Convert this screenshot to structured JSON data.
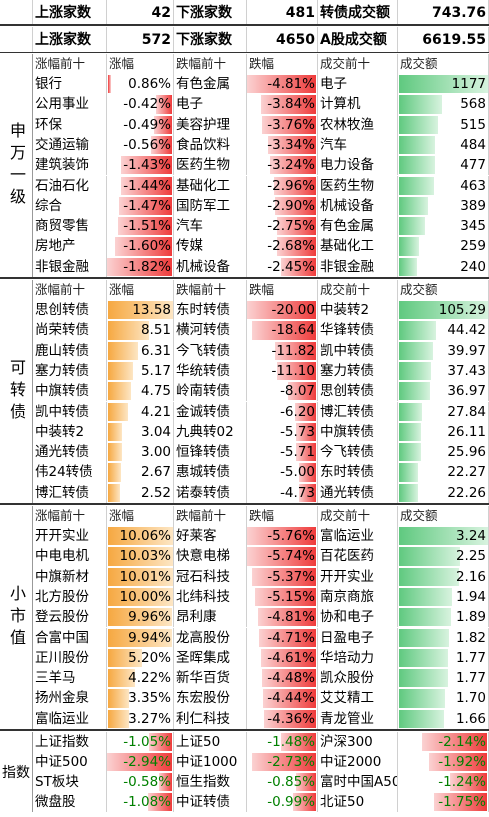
{
  "colors": {
    "up": "#ff0000",
    "down": "#008000",
    "neutral": "#000000"
  },
  "top": [
    {
      "k1": "上涨家数",
      "v1": "42",
      "k2": "下涨家数",
      "v2": "481",
      "k3": "转债成交额",
      "v3": "743.76"
    },
    {
      "k1": "上涨家数",
      "v1": "572",
      "k2": "下涨家数",
      "v2": "4650",
      "k3": "A股成交额",
      "v3": "6619.55"
    }
  ],
  "sections": [
    {
      "label": "申万一级",
      "headers": [
        "涨幅前十",
        "涨幅",
        "跌幅前十",
        "跌幅",
        "成交前十",
        "成交额"
      ],
      "rows": [
        [
          "银行",
          "0.86%",
          "有色金属",
          "-4.81%",
          "电子",
          "1177"
        ],
        [
          "公用事业",
          "-0.42%",
          "电子",
          "-3.84%",
          "计算机",
          "568"
        ],
        [
          "环保",
          "-0.49%",
          "美容护理",
          "-3.76%",
          "农林牧渔",
          "515"
        ],
        [
          "交通运输",
          "-0.56%",
          "食品饮料",
          "-3.34%",
          "汽车",
          "484"
        ],
        [
          "建筑装饰",
          "-1.43%",
          "医药生物",
          "-3.24%",
          "电力设备",
          "477"
        ],
        [
          "石油石化",
          "-1.44%",
          "基础化工",
          "-2.96%",
          "医药生物",
          "463"
        ],
        [
          "综合",
          "-1.47%",
          "国防军工",
          "-2.90%",
          "机械设备",
          "389"
        ],
        [
          "商贸零售",
          "-1.51%",
          "汽车",
          "-2.75%",
          "有色金属",
          "345"
        ],
        [
          "房地产",
          "-1.60%",
          "传媒",
          "-2.68%",
          "基础化工",
          "259"
        ],
        [
          "非银金融",
          "-1.82%",
          "机械设备",
          "-2.45%",
          "非银金融",
          "240"
        ]
      ],
      "bars": {
        "c1": [
          0.05,
          0.25,
          0.28,
          0.32,
          0.78,
          0.79,
          0.81,
          0.83,
          0.88,
          1.0
        ],
        "c3": [
          1.0,
          0.8,
          0.78,
          0.69,
          0.67,
          0.61,
          0.6,
          0.57,
          0.56,
          0.51
        ],
        "c5": [
          1.0,
          0.48,
          0.44,
          0.41,
          0.41,
          0.39,
          0.33,
          0.29,
          0.22,
          0.2
        ]
      }
    },
    {
      "label": "可转债",
      "headers": [
        "涨幅前十",
        "涨幅",
        "跌幅前十",
        "跌幅",
        "成交前十",
        "成交额"
      ],
      "rows": [
        [
          "思创转债",
          "13.58",
          "东时转债",
          "-20.00",
          "中装转2",
          "105.29"
        ],
        [
          "尚荣转债",
          "8.51",
          "横河转债",
          "-18.64",
          "华锋转债",
          "44.42"
        ],
        [
          "鹿山转债",
          "6.31",
          "今飞转债",
          "-11.82",
          "凯中转债",
          "39.97"
        ],
        [
          "塞力转债",
          "5.17",
          "华统转债",
          "-11.10",
          "塞力转债",
          "37.43"
        ],
        [
          "中旗转债",
          "4.75",
          "岭南转债",
          "-8.07",
          "思创转债",
          "36.97"
        ],
        [
          "凯中转债",
          "4.21",
          "金诚转债",
          "-6.20",
          "博汇转债",
          "27.84"
        ],
        [
          "中装转2",
          "3.04",
          "九典转02",
          "-5.73",
          "中旗转债",
          "26.11"
        ],
        [
          "通光转债",
          "3.00",
          "恒锋转债",
          "-5.71",
          "今飞转债",
          "25.96"
        ],
        [
          "伟24转债",
          "2.67",
          "惠城转债",
          "-5.00",
          "东时转债",
          "22.27"
        ],
        [
          "博汇转债",
          "2.52",
          "诺泰转债",
          "-4.73",
          "通光转债",
          "22.26"
        ]
      ],
      "bars": {
        "c1": [
          1.0,
          0.63,
          0.46,
          0.38,
          0.35,
          0.31,
          0.22,
          0.22,
          0.2,
          0.19
        ],
        "c3": [
          1.0,
          0.93,
          0.59,
          0.56,
          0.4,
          0.31,
          0.29,
          0.29,
          0.25,
          0.24
        ],
        "c5": [
          1.0,
          0.42,
          0.38,
          0.36,
          0.35,
          0.26,
          0.25,
          0.25,
          0.21,
          0.21
        ]
      }
    },
    {
      "label": "小市值",
      "headers": [
        "涨幅前十",
        "涨幅",
        "跌幅前十",
        "跌幅",
        "成交前十",
        "成交额"
      ],
      "rows": [
        [
          "开开实业",
          "10.06%",
          "好莱客",
          "-5.76%",
          "富临运业",
          "3.24"
        ],
        [
          "中电电机",
          "10.03%",
          "快意电梯",
          "-5.74%",
          "百花医药",
          "2.25"
        ],
        [
          "中旗新材",
          "10.01%",
          "冠石科技",
          "-5.37%",
          "开开实业",
          "2.16"
        ],
        [
          "北方股份",
          "10.00%",
          "北纬科技",
          "-5.15%",
          "南京商旅",
          "1.94"
        ],
        [
          "登云股份",
          "9.96%",
          "昂利康",
          "-4.81%",
          "协和电子",
          "1.89"
        ],
        [
          "合富中国",
          "9.94%",
          "龙高股份",
          "-4.71%",
          "日盈电子",
          "1.82"
        ],
        [
          "正川股份",
          "5.20%",
          "圣晖集成",
          "-4.61%",
          "华培动力",
          "1.77"
        ],
        [
          "三羊马",
          "4.22%",
          "新华百货",
          "-4.48%",
          "凯众股份",
          "1.77"
        ],
        [
          "扬州金泉",
          "3.35%",
          "东宏股份",
          "-4.44%",
          "艾艾精工",
          "1.70"
        ],
        [
          "富临运业",
          "3.27%",
          "利仁科技",
          "-4.36%",
          "青龙管业",
          "1.66"
        ]
      ],
      "bars": {
        "c1": [
          1.0,
          1.0,
          1.0,
          1.0,
          0.99,
          0.99,
          0.52,
          0.42,
          0.33,
          0.33
        ],
        "c3": [
          1.0,
          1.0,
          0.93,
          0.89,
          0.84,
          0.82,
          0.8,
          0.78,
          0.77,
          0.76
        ],
        "c5": [
          1.0,
          0.69,
          0.67,
          0.6,
          0.58,
          0.56,
          0.55,
          0.55,
          0.52,
          0.51
        ]
      }
    }
  ],
  "index": {
    "label": "指数",
    "rows": [
      [
        "上证指数",
        "-1.05%",
        "上证50",
        "-1.48%",
        "沪深300",
        "-2.14%"
      ],
      [
        "中证500",
        "-2.94%",
        "中证1000",
        "-2.73%",
        "中证2000",
        "-1.92%"
      ],
      [
        "ST板块",
        "-0.58%",
        "恒生指数",
        "-0.85%",
        "富时中国A50",
        "-1.24%"
      ],
      [
        "微盘股",
        "-1.08%",
        "中证转债",
        "-0.99%",
        "北证50",
        "-1.75%"
      ]
    ],
    "bars": {
      "c1": [
        0.36,
        1.0,
        0.2,
        0.37
      ],
      "c3": [
        0.5,
        0.93,
        0.29,
        0.34
      ],
      "c5": [
        0.73,
        0.65,
        0.42,
        0.6
      ]
    }
  }
}
